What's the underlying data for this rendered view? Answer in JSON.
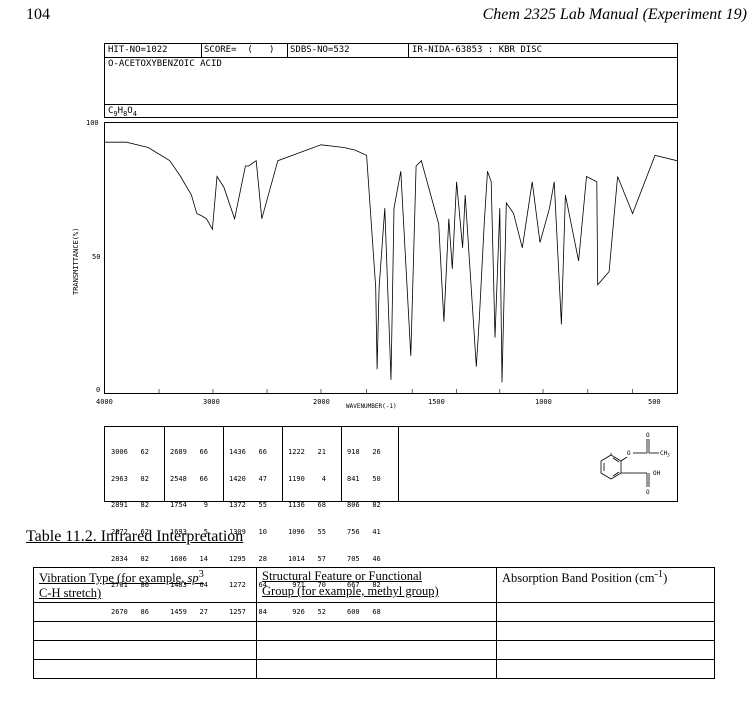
{
  "header": {
    "page_number": "104",
    "running_title": "Chem 2325 Lab Manual (Experiment 19)"
  },
  "spectrum_header": {
    "hit_no": "HIT-NO=1022",
    "score": "SCORE=  (   )",
    "sdbs_no": "SDBS-NO=532",
    "ir_no": "IR-NIDA-63853 : KBR DISC",
    "compound_name": "O-ACETOXYBENZOIC ACID",
    "formula_c": "C",
    "formula_c_sub": "9",
    "formula_h": "H",
    "formula_h_sub": "8",
    "formula_o": "O",
    "formula_o_sub": "4"
  },
  "spectrum_axes": {
    "ylabel": "TRANSMITTANCE(%)",
    "y_ticks": [
      "100",
      "50",
      "0"
    ],
    "x_ticks": [
      "4000",
      "3000",
      "2000",
      "1500",
      "1000",
      "500"
    ],
    "xlabel": "WAVENUMBER(-1)"
  },
  "chart_data": {
    "type": "line",
    "xlabel": "WAVENUMBER(-1)",
    "ylabel": "TRANSMITTANCE(%)",
    "xlim": [
      4000,
      400
    ],
    "ylim": [
      0,
      100
    ],
    "x": [
      4000,
      3800,
      3600,
      3400,
      3300,
      3200,
      3150,
      3100,
      3060,
      3006,
      2963,
      2900,
      2800,
      2700,
      2670,
      2600,
      2548,
      2400,
      2200,
      2000,
      1900,
      1850,
      1800,
      1760,
      1754,
      1745,
      1720,
      1693,
      1680,
      1650,
      1606,
      1583,
      1560,
      1483,
      1459,
      1436,
      1420,
      1400,
      1372,
      1360,
      1309,
      1295,
      1272,
      1257,
      1240,
      1222,
      1200,
      1190,
      1170,
      1136,
      1096,
      1050,
      1014,
      971,
      950,
      918,
      900,
      841,
      806,
      760,
      756,
      705,
      667,
      600,
      500,
      400
    ],
    "y": [
      95,
      95,
      93,
      88,
      82,
      75,
      68,
      67,
      66,
      62,
      82,
      78,
      66,
      86,
      86,
      88,
      66,
      88,
      91,
      94,
      93,
      92,
      90,
      40,
      9,
      40,
      70,
      5,
      70,
      84,
      14,
      86,
      88,
      64,
      27,
      66,
      47,
      80,
      55,
      75,
      10,
      28,
      64,
      84,
      80,
      21,
      70,
      4,
      72,
      68,
      55,
      80,
      57,
      70,
      80,
      26,
      75,
      50,
      82,
      80,
      41,
      46,
      82,
      68,
      90,
      88
    ]
  },
  "peak_table": [
    {
      "wn": [
        "3006",
        "2963",
        "2891",
        "2872",
        "2834",
        "2701",
        "2670"
      ],
      "t": [
        "62",
        "82",
        "82",
        "62",
        "82",
        "86",
        "86"
      ]
    },
    {
      "wn": [
        "2689",
        "2548",
        "1754",
        "1693",
        "1606",
        "1483",
        "1459"
      ],
      "t": [
        "66",
        "66",
        "9",
        "5",
        "14",
        "64",
        "27"
      ]
    },
    {
      "wn": [
        "1436",
        "1420",
        "1372",
        "1309",
        "1295",
        "1272",
        "1257"
      ],
      "t": [
        "66",
        "47",
        "55",
        "10",
        "28",
        "64",
        "84"
      ]
    },
    {
      "wn": [
        "1222",
        "1190",
        "1136",
        "1096",
        "1014",
        "971",
        "926"
      ],
      "t": [
        "21",
        "4",
        "68",
        "55",
        "57",
        "70",
        "52"
      ]
    },
    {
      "wn": [
        "918",
        "841",
        "806",
        "756",
        "705",
        "667",
        "600"
      ],
      "t": [
        "26",
        "50",
        "82",
        "41",
        "46",
        "82",
        "68"
      ]
    }
  ],
  "structure_labels": {
    "carbonyl_o_top": "O",
    "ester_o": "O",
    "methyl": "CH",
    "methyl_sub": "3",
    "acid_oh": "OH",
    "carbonyl_o_bottom": "O"
  },
  "table_caption": "Table 11.2.  Infrared Interpretation",
  "interp_table": {
    "col1_line1": "Vibration Type (for example, ",
    "col1_sp": "sp",
    "col1_sup": "3",
    "col1_line2": "C-H stretch)",
    "col2_line1": "Structural Feature or Functional",
    "col2_line2": "Group (for example, methyl group)",
    "col3_text": "Absorption Band Position (cm",
    "col3_sup": "-1",
    "col3_close": ")"
  }
}
